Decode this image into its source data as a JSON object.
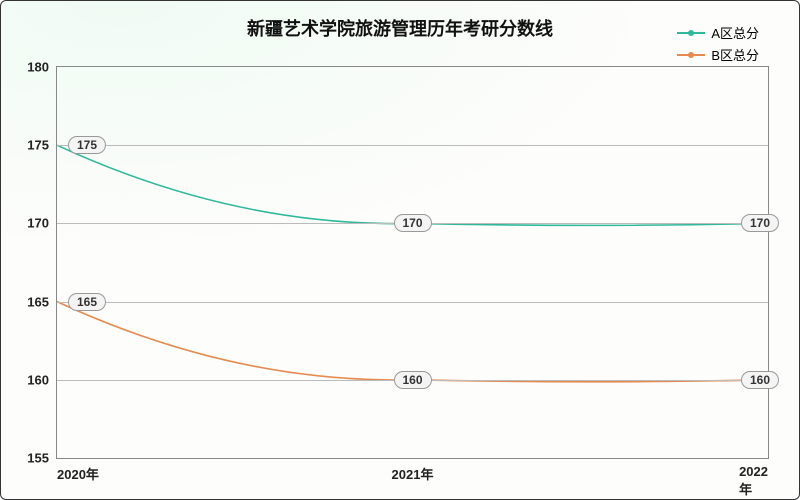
{
  "chart": {
    "type": "line",
    "title": "新疆艺术学院旅游管理历年考研分数线",
    "title_fontsize": 18,
    "background_gradient": [
      "#f0fbf4",
      "#fdfdfb",
      "#fdfdfb"
    ],
    "border_color": "#333333",
    "grid_color": "#bbbbbb",
    "x": {
      "categories": [
        "2020年",
        "2021年",
        "2022年"
      ],
      "positions_pct": [
        0,
        50,
        100
      ]
    },
    "y": {
      "min": 155,
      "max": 180,
      "ticks": [
        155,
        160,
        165,
        170,
        175,
        180
      ]
    },
    "series": [
      {
        "name": "A区总分",
        "color": "#2fb89a",
        "values": [
          175,
          170,
          170
        ],
        "label_offset_x": [
          30,
          0,
          -8
        ]
      },
      {
        "name": "B区总分",
        "color": "#e68a4f",
        "values": [
          165,
          160,
          160
        ],
        "label_offset_x": [
          30,
          0,
          -8
        ]
      }
    ],
    "label_bg": "#f4f4f4",
    "label_border": "#999999",
    "line_width": 1.6,
    "tick_fontsize": 13,
    "label_fontsize": 12
  }
}
